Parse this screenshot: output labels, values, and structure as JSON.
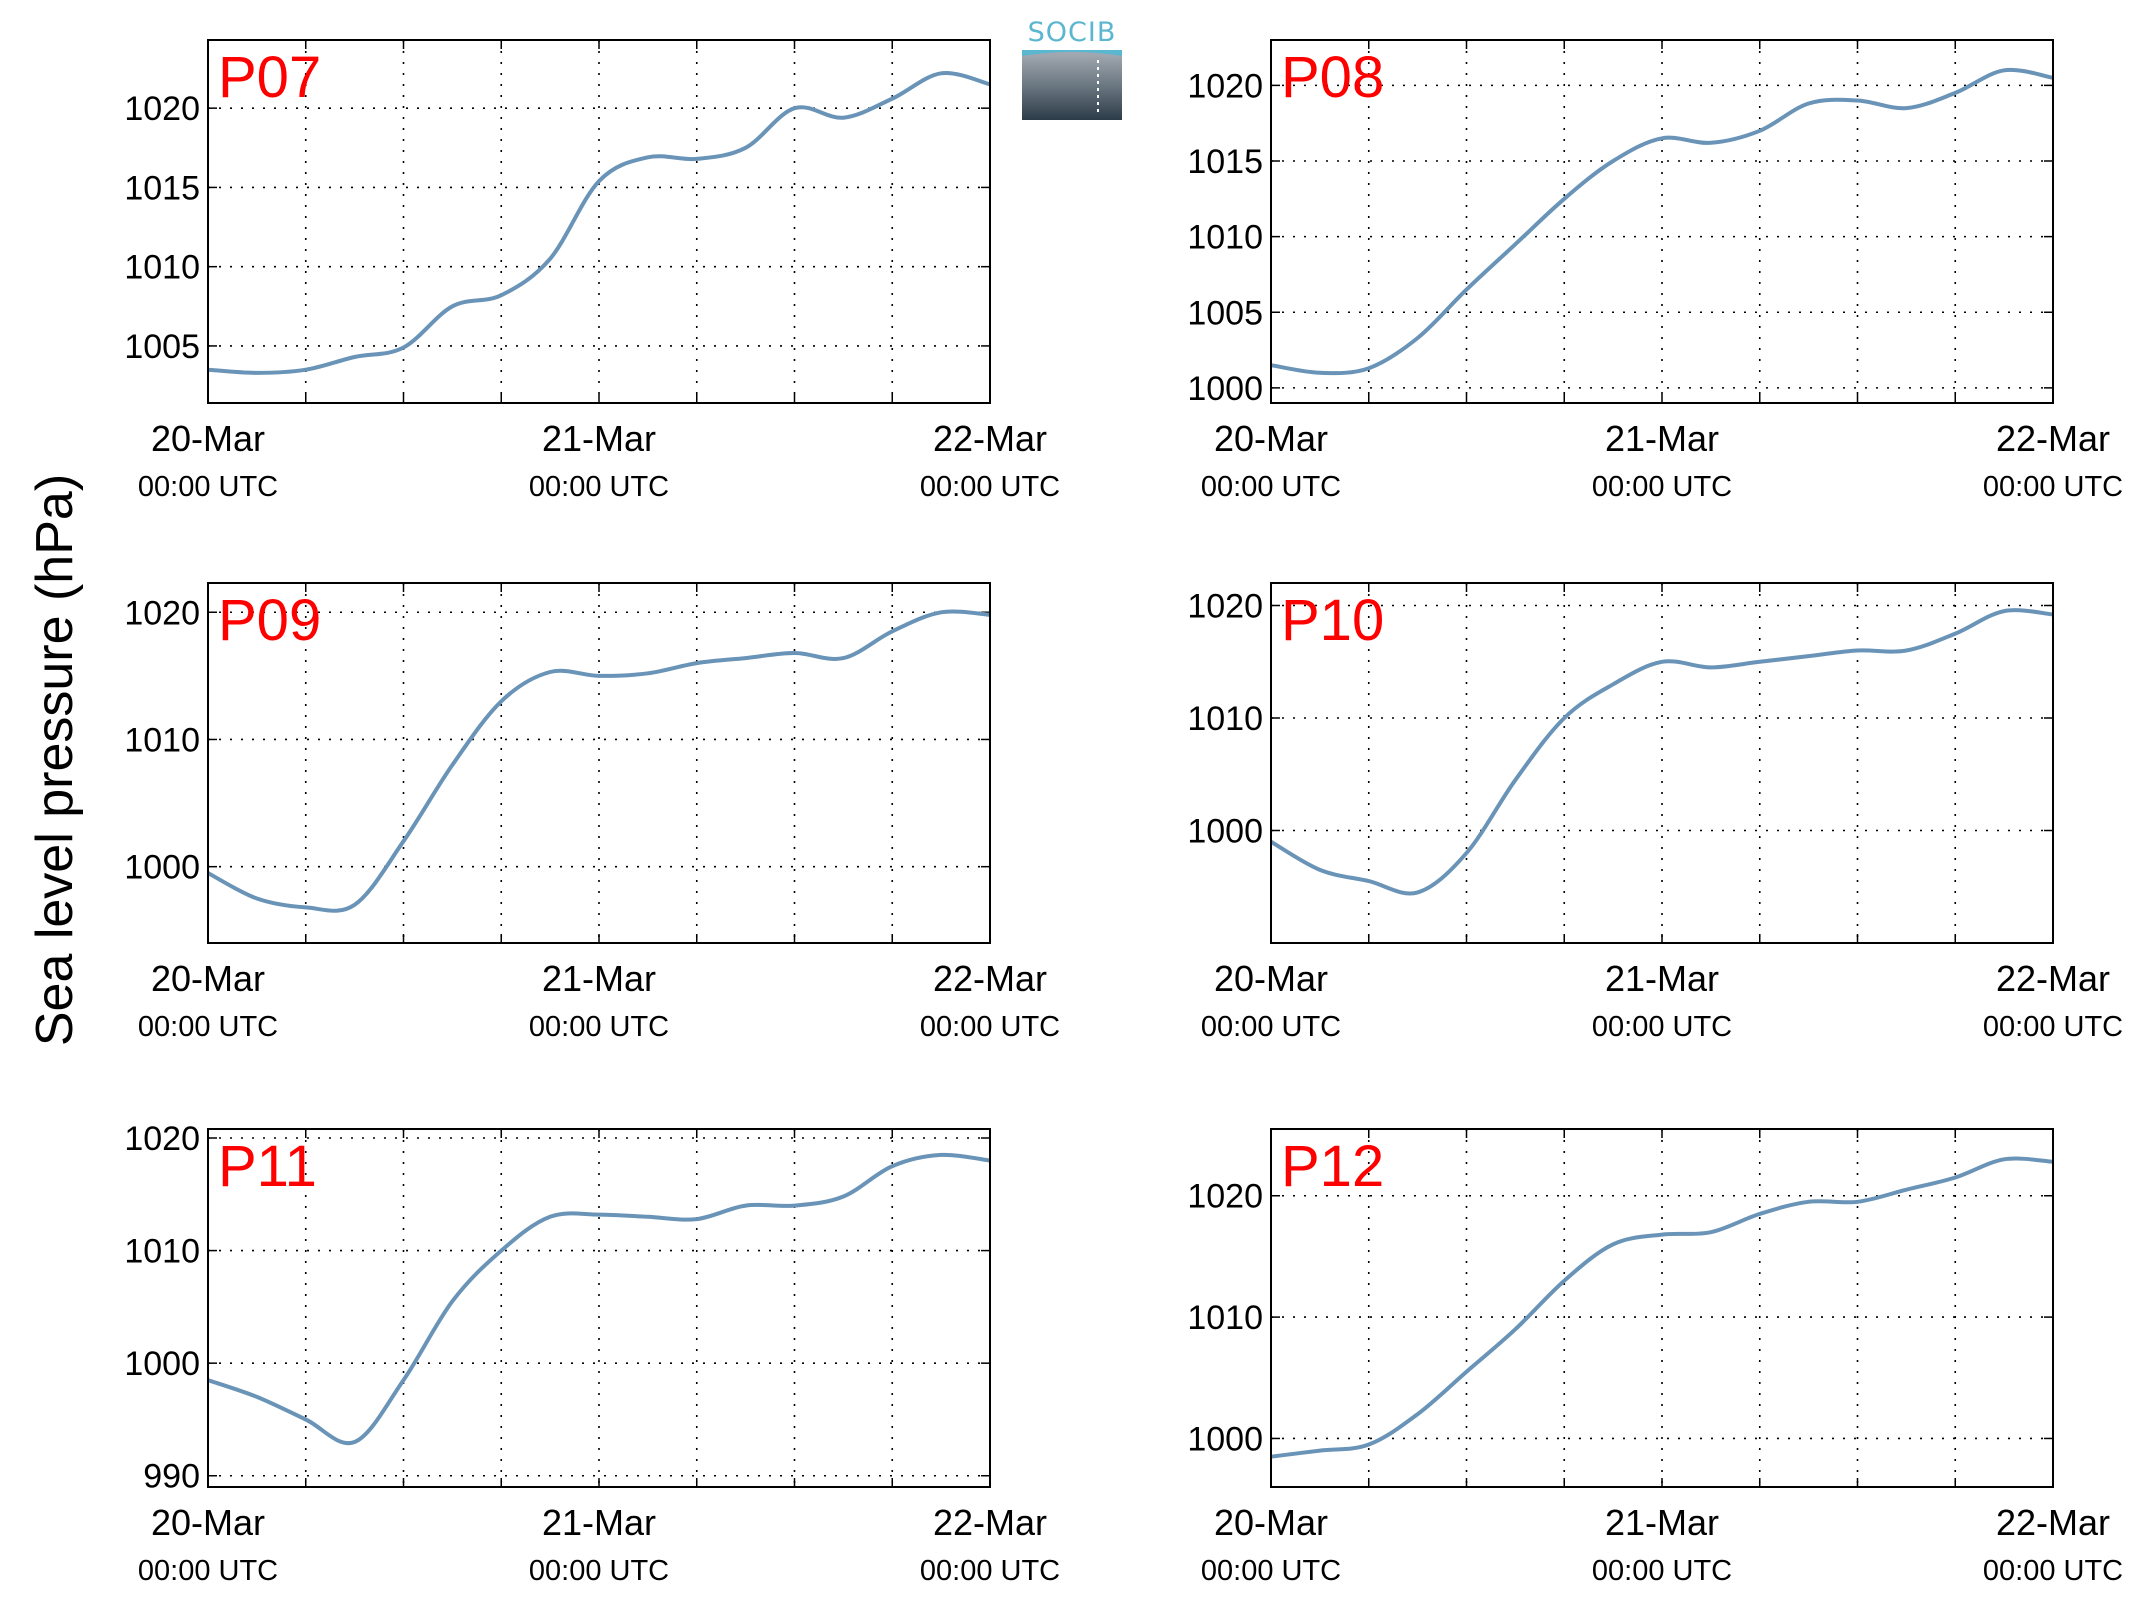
{
  "figure": {
    "ylabel": "Sea level pressure (hPa)",
    "logo_text": "SOCIB",
    "line_color": "#6a94b7",
    "station_label_color": "#ff0000"
  },
  "chart_data": [
    {
      "type": "line",
      "title": "P07",
      "x_ticks": [
        {
          "date": "20-Mar",
          "time": "00:00 UTC"
        },
        {
          "date": "21-Mar",
          "time": "00:00 UTC"
        },
        {
          "date": "22-Mar",
          "time": "00:00 UTC"
        }
      ],
      "xlim_days": [
        0,
        2
      ],
      "ylim": [
        1001.4,
        1024.3
      ],
      "yticks": [
        1005,
        1010,
        1015,
        1020
      ],
      "grid": true,
      "x_hours": [
        0,
        3,
        6,
        9,
        12,
        15,
        18,
        21,
        24,
        27,
        30,
        33,
        36,
        39,
        42,
        45,
        48
      ],
      "values": [
        1003.5,
        1003.3,
        1003.5,
        1004.3,
        1004.9,
        1007.5,
        1008.2,
        1010.5,
        1015.4,
        1016.9,
        1016.8,
        1017.5,
        1020.0,
        1019.4,
        1020.6,
        1022.2,
        1021.5
      ]
    },
    {
      "type": "line",
      "title": "P08",
      "x_ticks": [
        {
          "date": "20-Mar",
          "time": "00:00 UTC"
        },
        {
          "date": "21-Mar",
          "time": "00:00 UTC"
        },
        {
          "date": "22-Mar",
          "time": "00:00 UTC"
        }
      ],
      "xlim_days": [
        0,
        2
      ],
      "ylim": [
        999.0,
        1023.0
      ],
      "yticks": [
        1000,
        1005,
        1010,
        1015,
        1020
      ],
      "grid": true,
      "x_hours": [
        0,
        3,
        6,
        9,
        12,
        15,
        18,
        21,
        24,
        27,
        30,
        33,
        36,
        39,
        42,
        45,
        48
      ],
      "values": [
        1001.5,
        1001.0,
        1001.3,
        1003.3,
        1006.5,
        1009.5,
        1012.5,
        1015.0,
        1016.5,
        1016.2,
        1017.0,
        1018.8,
        1019.0,
        1018.5,
        1019.5,
        1021.0,
        1020.5
      ]
    },
    {
      "type": "line",
      "title": "P09",
      "x_ticks": [
        {
          "date": "20-Mar",
          "time": "00:00 UTC"
        },
        {
          "date": "21-Mar",
          "time": "00:00 UTC"
        },
        {
          "date": "22-Mar",
          "time": "00:00 UTC"
        }
      ],
      "xlim_days": [
        0,
        2
      ],
      "ylim": [
        994.0,
        1022.3
      ],
      "yticks": [
        1000,
        1010,
        1020
      ],
      "grid": true,
      "x_hours": [
        0,
        3,
        6,
        9,
        12,
        15,
        18,
        21,
        24,
        27,
        30,
        33,
        36,
        39,
        42,
        45,
        48
      ],
      "values": [
        999.5,
        997.5,
        996.8,
        997.0,
        1002.0,
        1008.0,
        1013.0,
        1015.3,
        1015.0,
        1015.2,
        1016.0,
        1016.4,
        1016.8,
        1016.4,
        1018.5,
        1020.0,
        1019.8
      ]
    },
    {
      "type": "line",
      "title": "P10",
      "x_ticks": [
        {
          "date": "20-Mar",
          "time": "00:00 UTC"
        },
        {
          "date": "21-Mar",
          "time": "00:00 UTC"
        },
        {
          "date": "22-Mar",
          "time": "00:00 UTC"
        }
      ],
      "xlim_days": [
        0,
        2
      ],
      "ylim": [
        990.0,
        1022.0
      ],
      "yticks": [
        1000,
        1010,
        1020
      ],
      "grid": true,
      "x_hours": [
        0,
        3,
        6,
        9,
        12,
        15,
        18,
        21,
        24,
        27,
        30,
        33,
        36,
        39,
        42,
        45,
        48
      ],
      "values": [
        999.0,
        996.5,
        995.5,
        994.5,
        998.0,
        1004.5,
        1010.0,
        1013.0,
        1015.0,
        1014.5,
        1015.0,
        1015.5,
        1016.0,
        1016.0,
        1017.5,
        1019.5,
        1019.2
      ]
    },
    {
      "type": "line",
      "title": "P11",
      "x_ticks": [
        {
          "date": "20-Mar",
          "time": "00:00 UTC"
        },
        {
          "date": "21-Mar",
          "time": "00:00 UTC"
        },
        {
          "date": "22-Mar",
          "time": "00:00 UTC"
        }
      ],
      "xlim_days": [
        0,
        2
      ],
      "ylim": [
        989.0,
        1020.8
      ],
      "yticks": [
        990,
        1000,
        1010,
        1020
      ],
      "grid": true,
      "x_hours": [
        0,
        3,
        6,
        9,
        12,
        15,
        18,
        21,
        24,
        27,
        30,
        33,
        36,
        39,
        42,
        45,
        48
      ],
      "values": [
        998.5,
        997.0,
        995.0,
        993.0,
        998.5,
        1005.5,
        1010.0,
        1013.0,
        1013.2,
        1013.0,
        1012.8,
        1014.0,
        1014.0,
        1014.8,
        1017.5,
        1018.5,
        1018.0
      ]
    },
    {
      "type": "line",
      "title": "P12",
      "x_ticks": [
        {
          "date": "20-Mar",
          "time": "00:00 UTC"
        },
        {
          "date": "21-Mar",
          "time": "00:00 UTC"
        },
        {
          "date": "22-Mar",
          "time": "00:00 UTC"
        }
      ],
      "xlim_days": [
        0,
        2
      ],
      "ylim": [
        996.0,
        1025.5
      ],
      "yticks": [
        1000,
        1010,
        1020
      ],
      "grid": true,
      "x_hours": [
        0,
        3,
        6,
        9,
        12,
        15,
        18,
        21,
        24,
        27,
        30,
        33,
        36,
        39,
        42,
        45,
        48
      ],
      "values": [
        998.5,
        999.0,
        999.5,
        1002.0,
        1005.5,
        1009.0,
        1013.0,
        1016.0,
        1016.8,
        1017.0,
        1018.5,
        1019.5,
        1019.5,
        1020.5,
        1021.5,
        1023.0,
        1022.8
      ]
    }
  ]
}
